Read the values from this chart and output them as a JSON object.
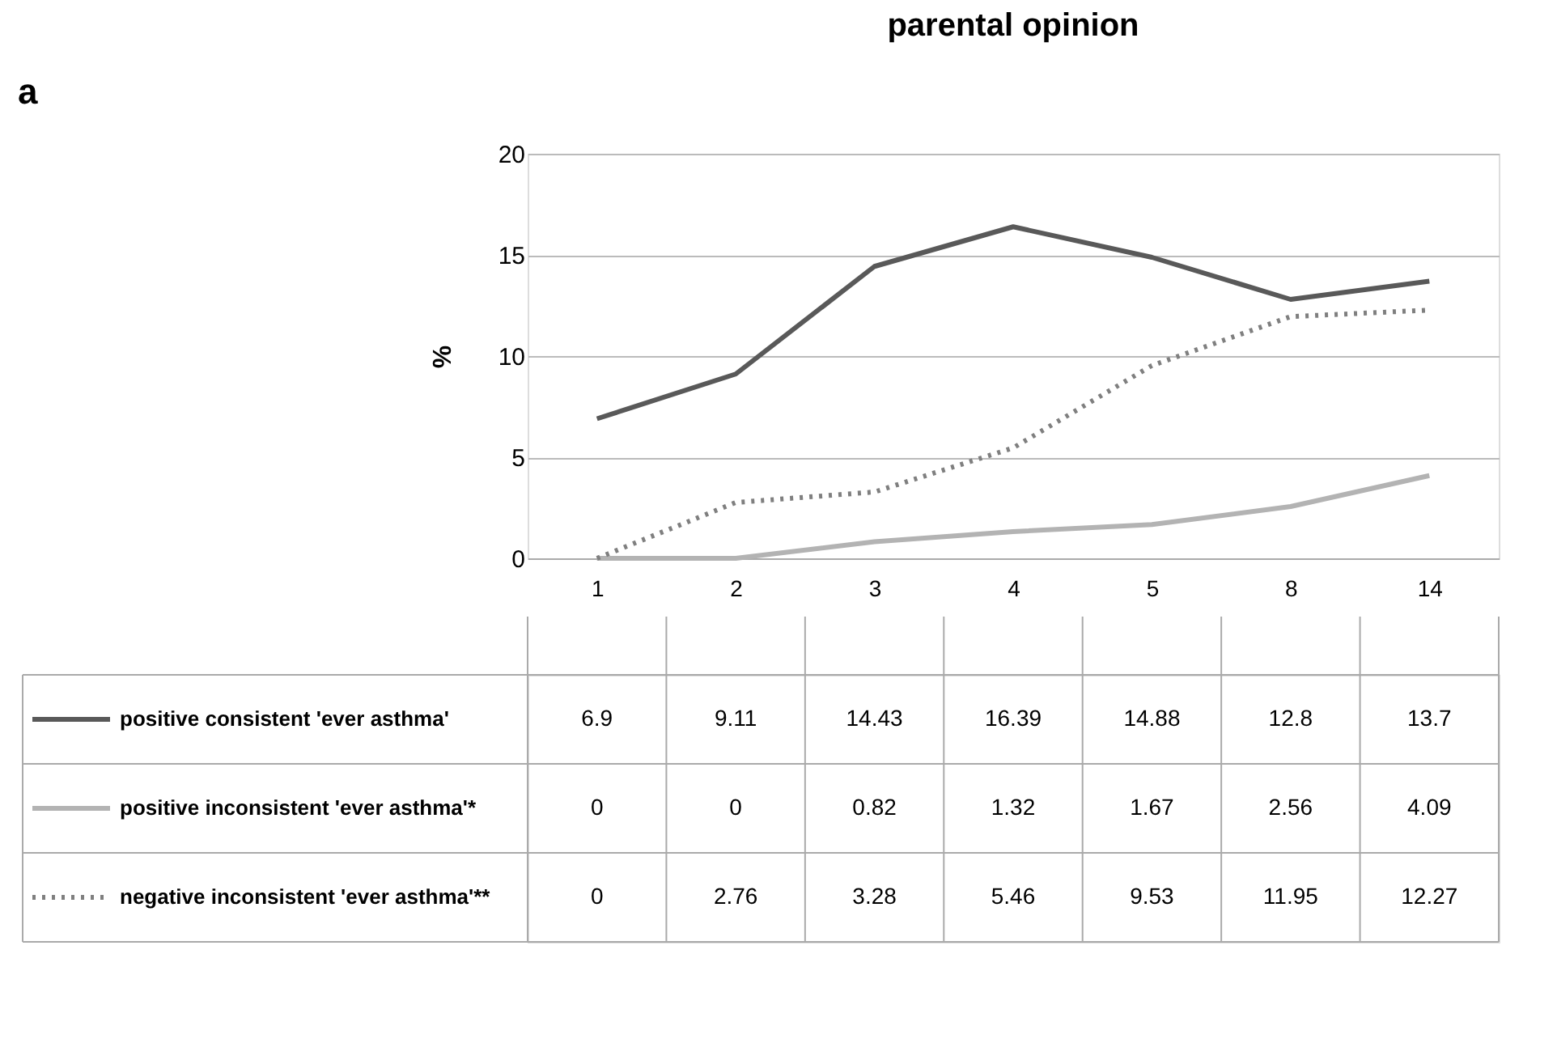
{
  "chart_data": {
    "type": "line",
    "title": "parental opinion",
    "ylabel": "%",
    "annotations": [
      "a"
    ],
    "categories": [
      "1",
      "2",
      "3",
      "4",
      "5",
      "8",
      "14"
    ],
    "series": [
      {
        "name": "positive consistent 'ever asthma'",
        "color": "#595959",
        "line_style": "solid",
        "values": [
          6.9,
          9.11,
          14.43,
          16.39,
          14.88,
          12.8,
          13.7
        ]
      },
      {
        "name": "positive inconsistent 'ever asthma'*",
        "color": "#b3b3b3",
        "line_style": "solid",
        "values": [
          0,
          0,
          0.82,
          1.32,
          1.67,
          2.56,
          4.09
        ]
      },
      {
        "name": "negative inconsistent 'ever asthma'**",
        "color": "#7f7f7f",
        "line_style": "dotted",
        "values": [
          0,
          2.76,
          3.28,
          5.46,
          9.53,
          11.95,
          12.27
        ]
      }
    ],
    "ylim": [
      0,
      20
    ],
    "yticks": [
      0,
      5,
      10,
      15,
      20
    ],
    "grid": "y",
    "legend": "bottom left",
    "marker": "none",
    "data_labels": true
  }
}
